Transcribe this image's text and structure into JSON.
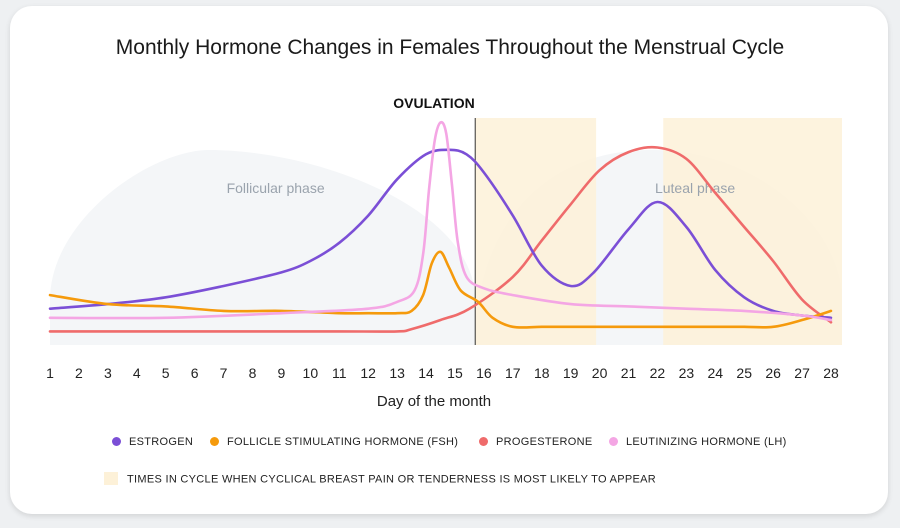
{
  "chart_data": {
    "type": "line",
    "title": "Monthly Hormone Changes in Females Throughout the Menstrual Cycle",
    "xlabel": "Day of the month",
    "ylabel": "",
    "x_ticks": [
      1,
      2,
      3,
      4,
      5,
      6,
      7,
      8,
      9,
      10,
      11,
      12,
      13,
      14,
      15,
      16,
      17,
      18,
      19,
      20,
      21,
      22,
      23,
      24,
      25,
      26,
      27,
      28
    ],
    "xlim": [
      1,
      28
    ],
    "ylim": [
      0,
      100
    ],
    "y_axis_shown": false,
    "grid": false,
    "phases": [
      {
        "label": "Follicular phase",
        "span": [
          1,
          15.7
        ]
      },
      {
        "label": "Luteal phase",
        "span": [
          16,
          28
        ]
      }
    ],
    "ovulation": {
      "label": "OVULATION",
      "day": 15.7
    },
    "highlight_ranges": [
      [
        15.7,
        19.5
      ],
      [
        22.2,
        28
      ]
    ],
    "series": [
      {
        "name": "ESTROGEN",
        "color": "#7b4fd6",
        "points": [
          [
            1,
            16
          ],
          [
            3,
            18
          ],
          [
            5,
            21
          ],
          [
            7,
            26
          ],
          [
            9,
            32
          ],
          [
            10,
            37
          ],
          [
            11,
            45
          ],
          [
            12,
            57
          ],
          [
            13,
            73
          ],
          [
            14,
            84
          ],
          [
            14.8,
            86
          ],
          [
            15.4,
            84
          ],
          [
            16,
            76
          ],
          [
            17,
            57
          ],
          [
            18,
            35
          ],
          [
            19,
            26
          ],
          [
            19.8,
            32
          ],
          [
            21,
            51
          ],
          [
            22,
            63
          ],
          [
            23,
            52
          ],
          [
            24,
            33
          ],
          [
            25,
            21
          ],
          [
            26,
            15
          ],
          [
            27,
            13
          ],
          [
            28,
            12
          ]
        ]
      },
      {
        "name": "FOLLICLE STIMULATING HORMONE (FSH)",
        "color": "#f59a0c",
        "points": [
          [
            1,
            22
          ],
          [
            3,
            18
          ],
          [
            5,
            17
          ],
          [
            7,
            15
          ],
          [
            9,
            15
          ],
          [
            11,
            14
          ],
          [
            12,
            14
          ],
          [
            13,
            14
          ],
          [
            13.5,
            15
          ],
          [
            13.9,
            22
          ],
          [
            14.2,
            36
          ],
          [
            14.5,
            41
          ],
          [
            14.8,
            34
          ],
          [
            15.2,
            24
          ],
          [
            15.8,
            19
          ],
          [
            16.3,
            12
          ],
          [
            17,
            8
          ],
          [
            18,
            8
          ],
          [
            19,
            8
          ],
          [
            20,
            8
          ],
          [
            22,
            8
          ],
          [
            24,
            8
          ],
          [
            25,
            8
          ],
          [
            26,
            8
          ],
          [
            27,
            11
          ],
          [
            28,
            15
          ]
        ]
      },
      {
        "name": "PROGESTERONE",
        "color": "#ef6b6b",
        "points": [
          [
            1,
            6
          ],
          [
            3,
            6
          ],
          [
            5,
            6
          ],
          [
            8,
            6
          ],
          [
            11,
            6
          ],
          [
            13,
            6
          ],
          [
            13.5,
            7
          ],
          [
            14.5,
            11
          ],
          [
            15.5,
            16
          ],
          [
            17,
            30
          ],
          [
            18,
            46
          ],
          [
            19,
            62
          ],
          [
            20,
            77
          ],
          [
            21,
            85
          ],
          [
            22,
            87
          ],
          [
            23,
            82
          ],
          [
            24,
            67
          ],
          [
            25,
            52
          ],
          [
            26,
            37
          ],
          [
            27,
            20
          ],
          [
            28,
            10
          ]
        ]
      },
      {
        "name": "LEUTINIZING HORMONE (LH)",
        "color": "#f4a6e4",
        "points": [
          [
            1,
            12
          ],
          [
            5,
            12
          ],
          [
            9,
            14
          ],
          [
            12,
            16
          ],
          [
            13,
            19
          ],
          [
            13.6,
            24
          ],
          [
            13.9,
            40
          ],
          [
            14.1,
            68
          ],
          [
            14.3,
            90
          ],
          [
            14.5,
            98
          ],
          [
            14.7,
            93
          ],
          [
            14.9,
            70
          ],
          [
            15.1,
            45
          ],
          [
            15.4,
            30
          ],
          [
            16,
            25
          ],
          [
            17,
            22
          ],
          [
            19,
            18
          ],
          [
            21,
            17
          ],
          [
            23,
            16
          ],
          [
            25,
            15
          ],
          [
            27,
            13
          ],
          [
            28,
            11
          ]
        ]
      }
    ],
    "highlight_note": "TIMES IN CYCLE WHEN CYCLICAL BREAST PAIN OR TENDERNESS IS MOST LIKELY TO  APPEAR",
    "highlight_color": "#fdf1d8"
  }
}
